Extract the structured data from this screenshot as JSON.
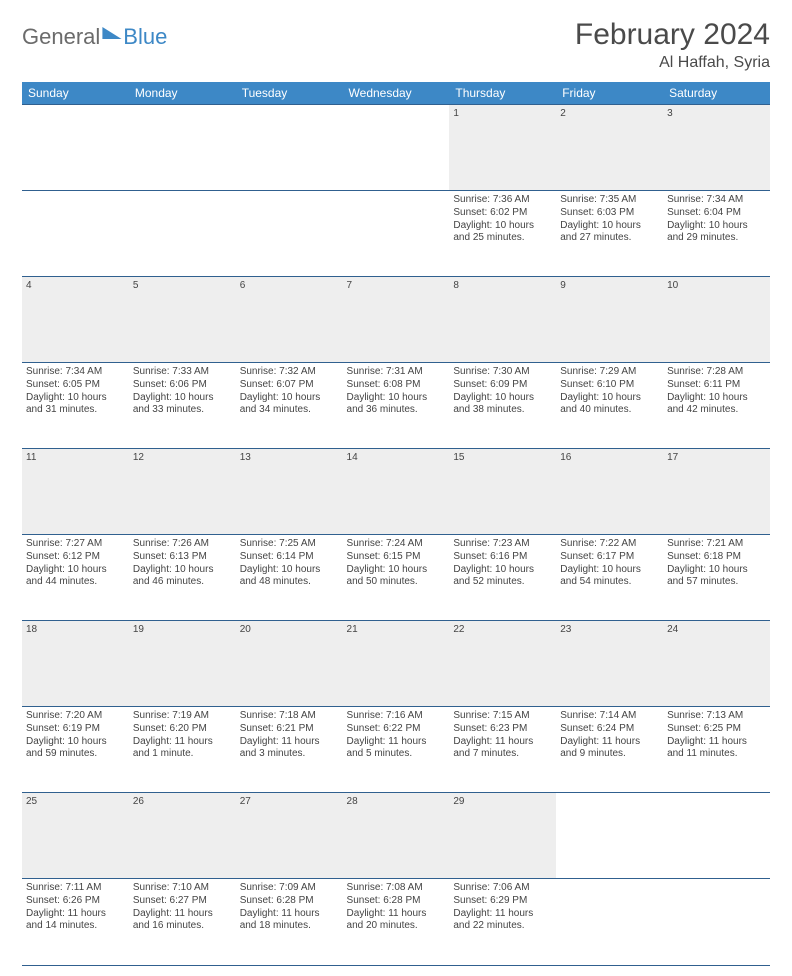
{
  "brand": {
    "part1": "General",
    "part2": "Blue"
  },
  "title": "February 2024",
  "location": "Al Haffah, Syria",
  "colors": {
    "accent": "#3d88c6",
    "rule": "#30608f",
    "dayBg": "#eeeeee",
    "text": "#444444"
  },
  "fonts": {
    "title_size": 30,
    "location_size": 16,
    "header_size": 12,
    "cell_size": 10
  },
  "weekdays": [
    "Sunday",
    "Monday",
    "Tuesday",
    "Wednesday",
    "Thursday",
    "Friday",
    "Saturday"
  ],
  "weeks": [
    [
      null,
      null,
      null,
      null,
      {
        "n": "1",
        "sr": "7:36 AM",
        "ss": "6:02 PM",
        "dl": "10 hours and 25 minutes."
      },
      {
        "n": "2",
        "sr": "7:35 AM",
        "ss": "6:03 PM",
        "dl": "10 hours and 27 minutes."
      },
      {
        "n": "3",
        "sr": "7:34 AM",
        "ss": "6:04 PM",
        "dl": "10 hours and 29 minutes."
      }
    ],
    [
      {
        "n": "4",
        "sr": "7:34 AM",
        "ss": "6:05 PM",
        "dl": "10 hours and 31 minutes."
      },
      {
        "n": "5",
        "sr": "7:33 AM",
        "ss": "6:06 PM",
        "dl": "10 hours and 33 minutes."
      },
      {
        "n": "6",
        "sr": "7:32 AM",
        "ss": "6:07 PM",
        "dl": "10 hours and 34 minutes."
      },
      {
        "n": "7",
        "sr": "7:31 AM",
        "ss": "6:08 PM",
        "dl": "10 hours and 36 minutes."
      },
      {
        "n": "8",
        "sr": "7:30 AM",
        "ss": "6:09 PM",
        "dl": "10 hours and 38 minutes."
      },
      {
        "n": "9",
        "sr": "7:29 AM",
        "ss": "6:10 PM",
        "dl": "10 hours and 40 minutes."
      },
      {
        "n": "10",
        "sr": "7:28 AM",
        "ss": "6:11 PM",
        "dl": "10 hours and 42 minutes."
      }
    ],
    [
      {
        "n": "11",
        "sr": "7:27 AM",
        "ss": "6:12 PM",
        "dl": "10 hours and 44 minutes."
      },
      {
        "n": "12",
        "sr": "7:26 AM",
        "ss": "6:13 PM",
        "dl": "10 hours and 46 minutes."
      },
      {
        "n": "13",
        "sr": "7:25 AM",
        "ss": "6:14 PM",
        "dl": "10 hours and 48 minutes."
      },
      {
        "n": "14",
        "sr": "7:24 AM",
        "ss": "6:15 PM",
        "dl": "10 hours and 50 minutes."
      },
      {
        "n": "15",
        "sr": "7:23 AM",
        "ss": "6:16 PM",
        "dl": "10 hours and 52 minutes."
      },
      {
        "n": "16",
        "sr": "7:22 AM",
        "ss": "6:17 PM",
        "dl": "10 hours and 54 minutes."
      },
      {
        "n": "17",
        "sr": "7:21 AM",
        "ss": "6:18 PM",
        "dl": "10 hours and 57 minutes."
      }
    ],
    [
      {
        "n": "18",
        "sr": "7:20 AM",
        "ss": "6:19 PM",
        "dl": "10 hours and 59 minutes."
      },
      {
        "n": "19",
        "sr": "7:19 AM",
        "ss": "6:20 PM",
        "dl": "11 hours and 1 minute."
      },
      {
        "n": "20",
        "sr": "7:18 AM",
        "ss": "6:21 PM",
        "dl": "11 hours and 3 minutes."
      },
      {
        "n": "21",
        "sr": "7:16 AM",
        "ss": "6:22 PM",
        "dl": "11 hours and 5 minutes."
      },
      {
        "n": "22",
        "sr": "7:15 AM",
        "ss": "6:23 PM",
        "dl": "11 hours and 7 minutes."
      },
      {
        "n": "23",
        "sr": "7:14 AM",
        "ss": "6:24 PM",
        "dl": "11 hours and 9 minutes."
      },
      {
        "n": "24",
        "sr": "7:13 AM",
        "ss": "6:25 PM",
        "dl": "11 hours and 11 minutes."
      }
    ],
    [
      {
        "n": "25",
        "sr": "7:11 AM",
        "ss": "6:26 PM",
        "dl": "11 hours and 14 minutes."
      },
      {
        "n": "26",
        "sr": "7:10 AM",
        "ss": "6:27 PM",
        "dl": "11 hours and 16 minutes."
      },
      {
        "n": "27",
        "sr": "7:09 AM",
        "ss": "6:28 PM",
        "dl": "11 hours and 18 minutes."
      },
      {
        "n": "28",
        "sr": "7:08 AM",
        "ss": "6:28 PM",
        "dl": "11 hours and 20 minutes."
      },
      {
        "n": "29",
        "sr": "7:06 AM",
        "ss": "6:29 PM",
        "dl": "11 hours and 22 minutes."
      },
      null,
      null
    ]
  ],
  "labels": {
    "sunrise": "Sunrise: ",
    "sunset": "Sunset: ",
    "daylight": "Daylight: "
  }
}
